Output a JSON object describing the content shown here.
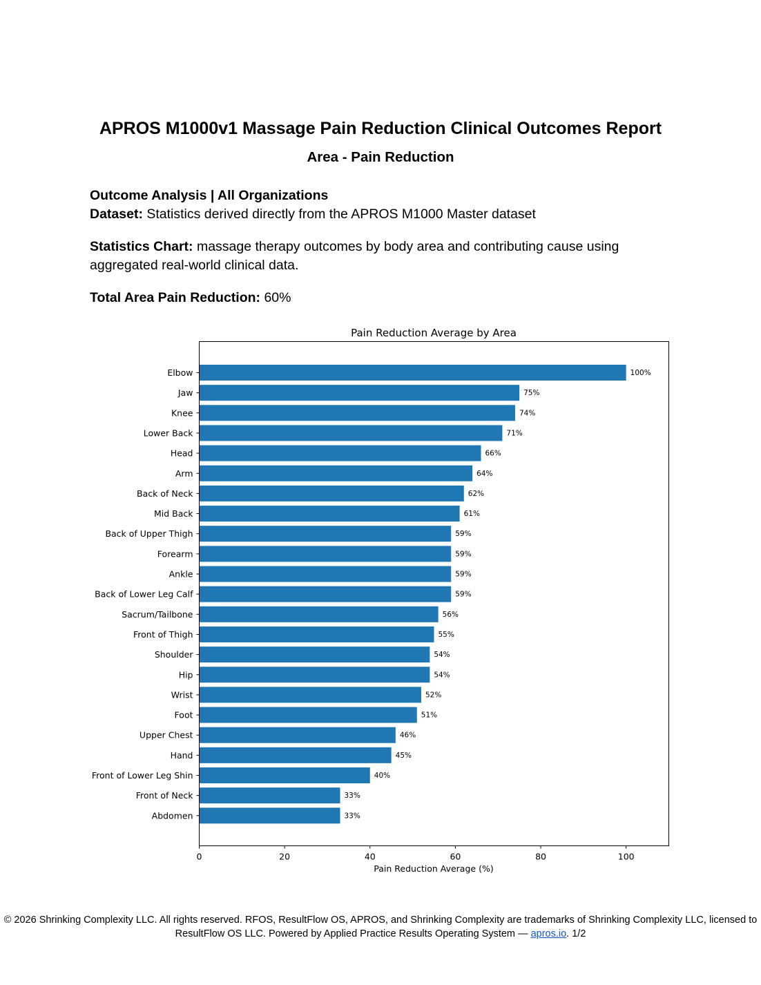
{
  "report": {
    "title": "APROS M1000v1 Massage Pain Reduction Clinical Outcomes Report",
    "subtitle": "Area - Pain Reduction",
    "analysis_heading": "Outcome Analysis | All Organizations",
    "dataset_label": "Dataset:",
    "dataset_text": "Statistics derived directly from the APROS M1000 Master dataset",
    "stats_label": "Statistics Chart:",
    "stats_text": "massage therapy outcomes by body area and contributing cause using aggregated real-world clinical data.",
    "total_label": "Total Area Pain Reduction:",
    "total_value": "60%"
  },
  "chart_data": {
    "type": "bar",
    "orientation": "horizontal",
    "title": "Pain Reduction Average by Area",
    "xlabel": "Pain Reduction Average (%)",
    "ylabel": "",
    "xlim": [
      0,
      110
    ],
    "xticks": [
      0,
      20,
      40,
      60,
      80,
      100
    ],
    "grid": false,
    "bar_color": "#1f77b4",
    "categories": [
      "Elbow",
      "Jaw",
      "Knee",
      "Lower Back",
      "Head",
      "Arm",
      "Back of Neck",
      "Mid Back",
      "Back of Upper Thigh",
      "Forearm",
      "Ankle",
      "Back of Lower Leg Calf",
      "Sacrum/Tailbone",
      "Front of Thigh",
      "Shoulder",
      "Hip",
      "Wrist",
      "Foot",
      "Upper Chest",
      "Hand",
      "Front of Lower Leg Shin",
      "Front of Neck",
      "Abdomen"
    ],
    "values": [
      100,
      75,
      74,
      71,
      66,
      64,
      62,
      61,
      59,
      59,
      59,
      59,
      56,
      55,
      54,
      54,
      52,
      51,
      46,
      45,
      40,
      33,
      33
    ],
    "labels": [
      "100%",
      "75%",
      "74%",
      "71%",
      "66%",
      "64%",
      "62%",
      "61%",
      "59%",
      "59%",
      "59%",
      "59%",
      "56%",
      "55%",
      "54%",
      "54%",
      "52%",
      "51%",
      "46%",
      "45%",
      "40%",
      "33%",
      "33%"
    ]
  },
  "footer": {
    "text_before": "© 2026 Shrinking Complexity LLC. All rights reserved. RFOS, ResultFlow OS, APROS, and Shrinking Complexity are trademarks of Shrinking Complexity LLC, licensed to ResultFlow OS LLC. Powered by Applied Practice Results Operating System — ",
    "link_text": "apros.io",
    "text_after": ". 1/2"
  }
}
